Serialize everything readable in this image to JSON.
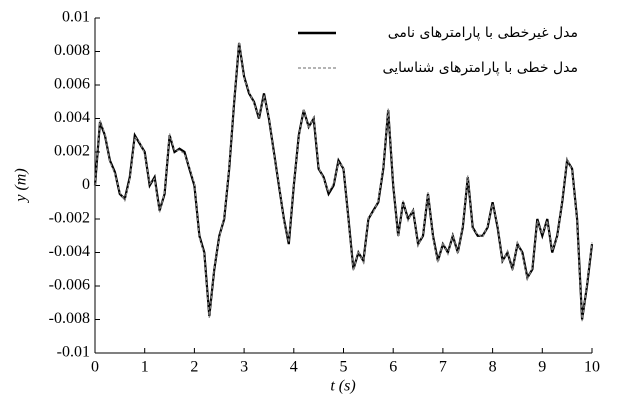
{
  "chart_data": {
    "type": "line",
    "x_label": "t (s)",
    "y_label": "y (m)",
    "x": [
      0,
      0.1,
      0.2,
      0.3,
      0.4,
      0.5,
      0.6,
      0.7,
      0.8,
      0.9,
      1,
      1.1,
      1.2,
      1.3,
      1.4,
      1.5,
      1.6,
      1.7,
      1.8,
      1.9,
      2,
      2.1,
      2.2,
      2.3,
      2.4,
      2.5,
      2.6,
      2.7,
      2.8,
      2.9,
      3,
      3.1,
      3.2,
      3.3,
      3.4,
      3.5,
      3.6,
      3.7,
      3.8,
      3.9,
      4,
      4.1,
      4.2,
      4.3,
      4.4,
      4.5,
      4.6,
      4.7,
      4.8,
      4.9,
      5,
      5.1,
      5.2,
      5.3,
      5.4,
      5.5,
      5.6,
      5.7,
      5.8,
      5.9,
      6,
      6.1,
      6.2,
      6.3,
      6.4,
      6.5,
      6.6,
      6.7,
      6.8,
      6.9,
      7,
      7.1,
      7.2,
      7.3,
      7.4,
      7.5,
      7.6,
      7.7,
      7.8,
      7.9,
      8,
      8.1,
      8.2,
      8.3,
      8.4,
      8.5,
      8.6,
      8.7,
      8.8,
      8.9,
      9,
      9.1,
      9.2,
      9.3,
      9.4,
      9.5,
      9.6,
      9.7,
      9.8,
      9.9,
      10
    ],
    "series": [
      {
        "name": "مدل غیرخطی با پارامترهای نامی",
        "color": "#000000",
        "linestyle": "solid",
        "values": [
          0,
          0.0038,
          0.003,
          0.0015,
          0.0008,
          -0.0005,
          -0.0008,
          0.0005,
          0.003,
          0.0025,
          0.002,
          0,
          0.0005,
          -0.0015,
          -0.0005,
          0.003,
          0.002,
          0.0022,
          0.002,
          0.001,
          0,
          -0.003,
          -0.004,
          -0.0078,
          -0.005,
          -0.003,
          -0.002,
          0.001,
          0.005,
          0.0085,
          0.0065,
          0.0055,
          0.005,
          0.004,
          0.0055,
          0.004,
          0.002,
          0,
          -0.002,
          -0.0035,
          0,
          0.003,
          0.0045,
          0.0035,
          0.004,
          0.001,
          0.0005,
          -0.0005,
          0,
          0.0015,
          0.001,
          -0.002,
          -0.005,
          -0.004,
          -0.0045,
          -0.002,
          -0.0015,
          -0.001,
          0.001,
          0.0045,
          0,
          -0.003,
          -0.001,
          -0.002,
          -0.0015,
          -0.0035,
          -0.003,
          -0.0005,
          -0.003,
          -0.0045,
          -0.0035,
          -0.004,
          -0.003,
          -0.004,
          -0.0025,
          0.0005,
          -0.0025,
          -0.003,
          -0.003,
          -0.0025,
          -0.001,
          -0.0025,
          -0.0045,
          -0.004,
          -0.005,
          -0.0035,
          -0.004,
          -0.0055,
          -0.005,
          -0.002,
          -0.003,
          -0.002,
          -0.004,
          -0.003,
          -0.001,
          0.0015,
          0.001,
          -0.002,
          -0.008,
          -0.006,
          -0.0035
        ]
      },
      {
        "name": "مدل خطی با پارامترهای شناسایی",
        "color": "#888888",
        "linestyle": "dashed",
        "values": [
          0,
          0.0039,
          0.0031,
          0.0014,
          0.0007,
          -0.0004,
          -0.0009,
          0.0004,
          0.0029,
          0.0026,
          0.0019,
          0.0001,
          0.0004,
          -0.0016,
          -0.0004,
          0.0031,
          0.0021,
          0.0021,
          0.0019,
          0.0011,
          0.0001,
          -0.0031,
          -0.0041,
          -0.0079,
          -0.0049,
          -0.0031,
          -0.0019,
          0.0011,
          0.0051,
          0.0086,
          0.0064,
          0.0056,
          0.0049,
          0.0041,
          0.0054,
          0.0041,
          0.0019,
          0.0001,
          -0.0021,
          -0.0034,
          0.0001,
          0.0029,
          0.0046,
          0.0034,
          0.0041,
          0.0011,
          0.0004,
          -0.0004,
          0.0001,
          0.0014,
          0.0011,
          -0.0021,
          -0.0051,
          -0.0039,
          -0.0046,
          -0.0019,
          -0.0016,
          -0.0009,
          0.0011,
          0.0046,
          0.0001,
          -0.0031,
          -0.0009,
          -0.0021,
          -0.0014,
          -0.0036,
          -0.0029,
          -0.0004,
          -0.0031,
          -0.0046,
          -0.0034,
          -0.0041,
          -0.0029,
          -0.0041,
          -0.0024,
          0.0006,
          -0.0026,
          -0.0029,
          -0.0031,
          -0.0024,
          -0.0011,
          -0.0024,
          -0.0046,
          -0.0039,
          -0.0051,
          -0.0034,
          -0.0041,
          -0.0056,
          -0.0049,
          -0.0021,
          -0.0029,
          -0.0021,
          -0.0039,
          -0.0031,
          -0.0009,
          0.0016,
          0.0009,
          -0.0021,
          -0.0081,
          -0.0059,
          -0.0034
        ]
      }
    ],
    "xlim": [
      0,
      10
    ],
    "xticks": [
      0,
      1,
      2,
      3,
      4,
      5,
      6,
      7,
      8,
      9,
      10
    ],
    "ylim": [
      -0.01,
      0.01
    ],
    "yticks": [
      -0.01,
      -0.008,
      -0.006,
      -0.004,
      -0.002,
      0,
      0.002,
      0.004,
      0.006,
      0.008,
      0.01
    ],
    "grid": false,
    "legend": "upper right"
  }
}
